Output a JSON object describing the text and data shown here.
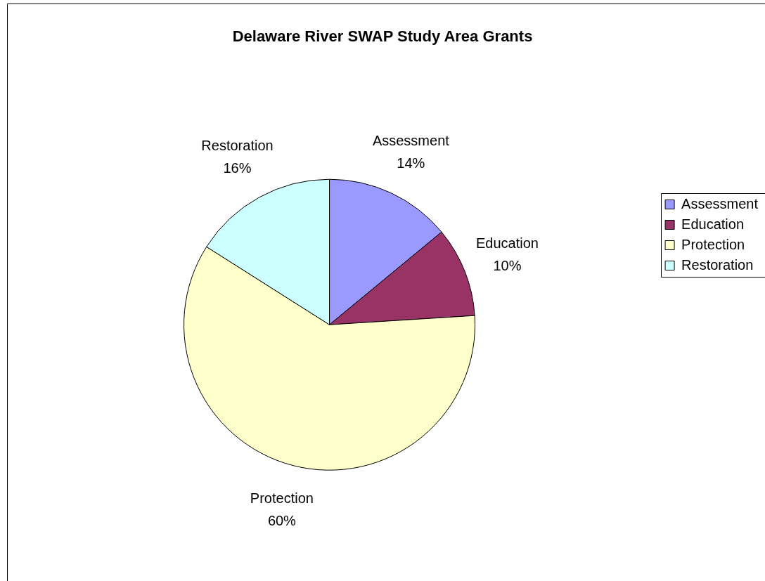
{
  "chart_data": {
    "type": "pie",
    "title": "Delaware River SWAP Study Area Grants",
    "categories": [
      "Assessment",
      "Education",
      "Protection",
      "Restoration"
    ],
    "values": [
      14,
      10,
      60,
      16
    ],
    "value_labels": [
      "14%",
      "10%",
      "60%",
      "16%"
    ],
    "colors": [
      "#9999ff",
      "#993366",
      "#ffffcc",
      "#ccffff"
    ],
    "legend": "right"
  }
}
